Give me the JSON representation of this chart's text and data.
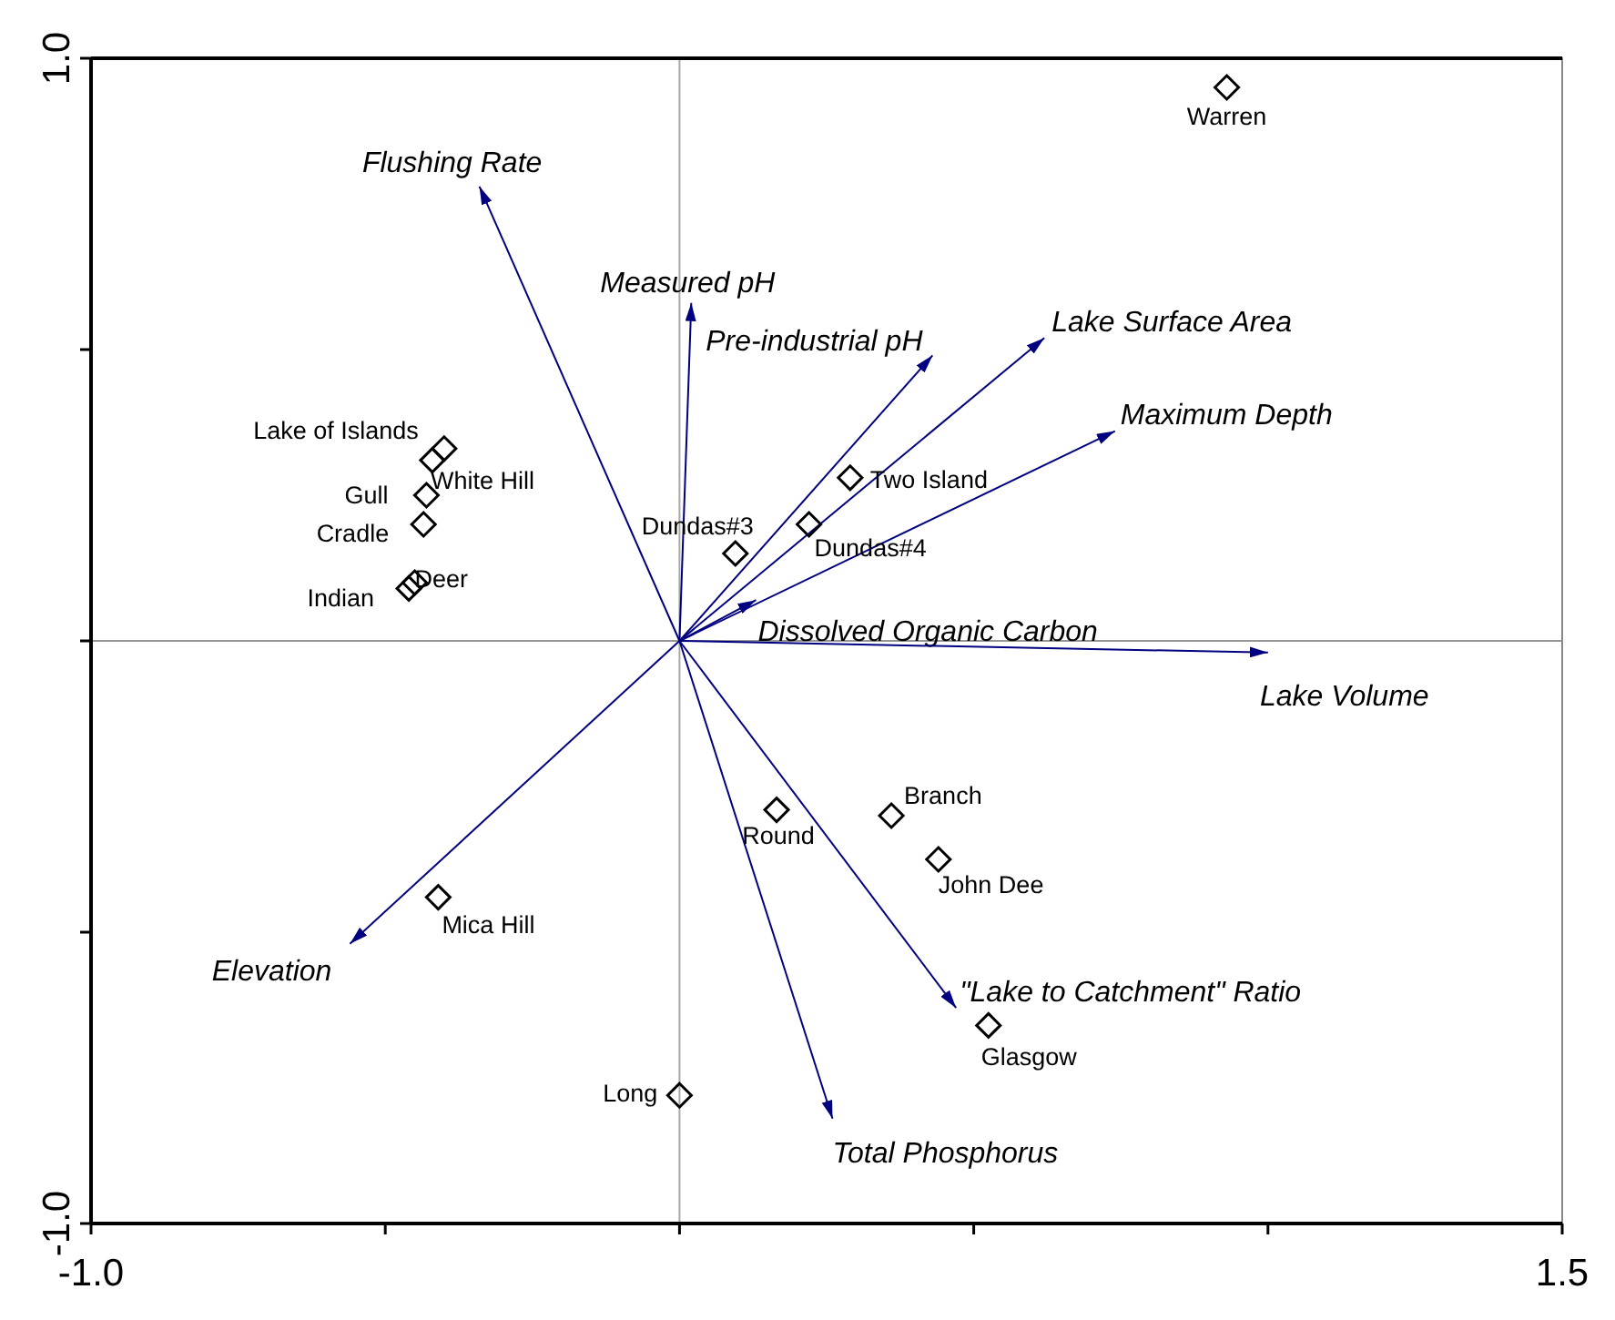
{
  "chart_data": {
    "type": "scatter",
    "marker": "diamond",
    "xlim": [
      -1.0,
      1.5
    ],
    "ylim": [
      -1.0,
      1.0
    ],
    "xticks": [
      {
        "value": -1.0,
        "label": "-1.0"
      },
      {
        "value": -0.5,
        "label": null
      },
      {
        "value": 0,
        "label": null
      },
      {
        "value": 0.5,
        "label": null
      },
      {
        "value": 1.0,
        "label": null
      },
      {
        "value": 1.5,
        "label": "1.5"
      }
    ],
    "yticks": [
      {
        "value": -1.0,
        "label": "-1.0"
      },
      {
        "value": -0.5,
        "label": null
      },
      {
        "value": 0,
        "label": null
      },
      {
        "value": 0.5,
        "label": null
      },
      {
        "value": 1.0,
        "label": "1.0"
      }
    ],
    "ref_lines": [
      {
        "axis": "x",
        "value": 0,
        "color": "#a8a8a8"
      },
      {
        "axis": "y",
        "value": 0,
        "color": "#969696"
      }
    ],
    "series": [
      {
        "type": "line",
        "marker": "none",
        "name": "Flushing Rate",
        "color": "#000080",
        "x": [
          0,
          -0.34
        ],
        "values": [
          0,
          0.78
        ]
      },
      {
        "type": "line",
        "marker": "none",
        "name": "Measured pH",
        "color": "#000080",
        "x": [
          0,
          0.02
        ],
        "values": [
          0,
          0.58
        ]
      },
      {
        "type": "line",
        "marker": "none",
        "name": "Pre-industrial pH",
        "color": "#000080",
        "x": [
          0,
          0.43
        ],
        "values": [
          0,
          0.49
        ]
      },
      {
        "type": "line",
        "marker": "none",
        "name": "Lake Surface Area",
        "color": "#000080",
        "x": [
          0,
          0.62
        ],
        "values": [
          0,
          0.52
        ]
      },
      {
        "type": "line",
        "marker": "none",
        "name": "Maximum Depth",
        "color": "#000080",
        "x": [
          0,
          0.74
        ],
        "values": [
          0,
          0.36
        ]
      },
      {
        "type": "line",
        "marker": "none",
        "name": "Dissolved Organic Carbon",
        "color": "#000080",
        "x": [
          0,
          0.13
        ],
        "values": [
          0,
          0.07
        ]
      },
      {
        "type": "line",
        "marker": "none",
        "name": "Lake Volume",
        "color": "#000080",
        "x": [
          0,
          1.0
        ],
        "values": [
          0,
          -0.02
        ]
      },
      {
        "type": "line",
        "marker": "none",
        "name": "Elevation",
        "color": "#000080",
        "x": [
          0,
          -0.56
        ],
        "values": [
          0,
          -0.52
        ]
      },
      {
        "type": "line",
        "marker": "none",
        "name": "\"Lake to Catchment\" Ratio",
        "color": "#000080",
        "x": [
          0,
          0.47
        ],
        "values": [
          0,
          -0.63
        ]
      },
      {
        "type": "line",
        "marker": "none",
        "name": "Total Phosphorus",
        "color": "#000080",
        "x": [
          0,
          0.26
        ],
        "values": [
          0,
          -0.82
        ]
      },
      {
        "name": "Warren",
        "color": "#000000",
        "x": [
          0.93
        ],
        "values": [
          0.95
        ]
      },
      {
        "name": "Lake of Islands",
        "color": "#000000",
        "x": [
          -0.4
        ],
        "values": [
          0.33
        ]
      },
      {
        "name": "White Hill",
        "color": "#000000",
        "x": [
          -0.42
        ],
        "values": [
          0.31
        ]
      },
      {
        "name": "Gull",
        "color": "#000000",
        "x": [
          -0.43
        ],
        "values": [
          0.25
        ]
      },
      {
        "name": "Cradle",
        "color": "#000000",
        "x": [
          -0.435
        ],
        "values": [
          0.2
        ]
      },
      {
        "name": "Deer",
        "color": "#000000",
        "x": [
          -0.45
        ],
        "values": [
          0.1
        ]
      },
      {
        "name": "Indian",
        "color": "#000000",
        "x": [
          -0.46
        ],
        "values": [
          0.09
        ]
      },
      {
        "name": "Two Island",
        "color": "#000000",
        "x": [
          0.29
        ],
        "values": [
          0.28
        ]
      },
      {
        "name": "Dundas#4",
        "color": "#000000",
        "x": [
          0.22
        ],
        "values": [
          0.2
        ]
      },
      {
        "name": "Dundas#3",
        "color": "#000000",
        "x": [
          0.095
        ],
        "values": [
          0.15
        ]
      },
      {
        "name": "Round",
        "color": "#000000",
        "x": [
          0.165
        ],
        "values": [
          -0.29
        ]
      },
      {
        "name": "Branch",
        "color": "#000000",
        "x": [
          0.36
        ],
        "values": [
          -0.3
        ]
      },
      {
        "name": "John Dee",
        "color": "#000000",
        "x": [
          0.44
        ],
        "values": [
          -0.375
        ]
      },
      {
        "name": "Glasgow",
        "color": "#000000",
        "x": [
          0.525
        ],
        "values": [
          -0.66
        ]
      },
      {
        "name": "Mica Hill",
        "color": "#000000",
        "x": [
          -0.41
        ],
        "values": [
          -0.44
        ]
      },
      {
        "name": "Long",
        "color": "#000000",
        "x": [
          0.0
        ],
        "values": [
          -0.78
        ]
      }
    ]
  }
}
